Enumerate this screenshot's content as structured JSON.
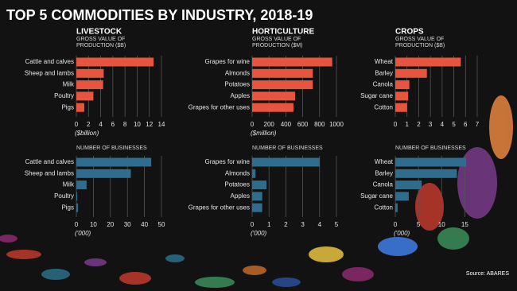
{
  "title": "TOP 5 COMMODITIES BY INDUSTRY, 2018-19",
  "source": "Source: ABARES",
  "chart_data": [
    {
      "type": "bar",
      "section": "LIVESTOCK",
      "subtitle": "GROSS VALUE OF PRODUCTION ($B)",
      "categories": [
        "Cattle and calves",
        "Sheep and lambs",
        "Milk",
        "Poultry",
        "Pigs"
      ],
      "values": [
        12.7,
        4.5,
        4.4,
        2.8,
        1.3
      ],
      "color": "#e8553f",
      "xlim": [
        0,
        14
      ],
      "xticks": [
        0,
        2,
        4,
        6,
        8,
        10,
        12,
        14
      ],
      "xlabel": "($billion)",
      "grid": true
    },
    {
      "type": "bar",
      "section": "HORTICULTURE",
      "subtitle": "GROSS VALUE OF PRODUCTION ($M)",
      "categories": [
        "Grapes for wine",
        "Almonds",
        "Potatoes",
        "Apples",
        "Grapes for other uses"
      ],
      "values": [
        950,
        720,
        720,
        510,
        490
      ],
      "color": "#e8553f",
      "xlim": [
        0,
        1000
      ],
      "xticks": [
        0,
        200,
        400,
        600,
        800,
        1000
      ],
      "xlabel": "($million)",
      "grid": true
    },
    {
      "type": "bar",
      "section": "CROPS",
      "subtitle": "GROSS VALUE OF PRODUCTION ($B)",
      "categories": [
        "Wheat",
        "Barley",
        "Canola",
        "Sugar cane",
        "Cotton"
      ],
      "values": [
        5.6,
        2.7,
        1.2,
        1.1,
        1.0
      ],
      "color": "#e8553f",
      "xlim": [
        0,
        7
      ],
      "xticks": [
        0,
        1,
        2,
        3,
        4,
        5,
        6,
        7
      ],
      "grid": true
    },
    {
      "type": "bar",
      "subtitle": "NUMBER OF BUSINESSES",
      "categories": [
        "Cattle and calves",
        "Sheep and lambs",
        "Milk",
        "Poultry",
        "Pigs"
      ],
      "values": [
        44,
        32,
        6,
        0.5,
        1
      ],
      "color": "#2e6d8e",
      "xlim": [
        0,
        50
      ],
      "xticks": [
        0,
        10,
        20,
        30,
        40,
        50
      ],
      "xlabel": "('000)",
      "grid": true
    },
    {
      "type": "bar",
      "subtitle": "NUMBER OF BUSINESSES",
      "categories": [
        "Grapes for wine",
        "Almonds",
        "Potatoes",
        "Apples",
        "Grapes for other uses"
      ],
      "values": [
        4.0,
        0.2,
        0.85,
        0.6,
        0.6
      ],
      "color": "#2e6d8e",
      "xlim": [
        0,
        5
      ],
      "xticks": [
        0,
        1,
        2,
        3,
        4,
        5
      ],
      "xlabel": "('000)",
      "grid": true
    },
    {
      "type": "bar",
      "subtitle": "NUMBER OF BUSINESSES",
      "categories": [
        "Wheat",
        "Barley",
        "Canola",
        "Sugar cane",
        "Cotton"
      ],
      "values": [
        15.3,
        13.3,
        5.7,
        2.9,
        0.5
      ],
      "color": "#2e6d8e",
      "xlim": [
        0,
        17
      ],
      "xticks": [
        0,
        5,
        10,
        15
      ],
      "xlabel": "('000)",
      "grid": true
    }
  ]
}
